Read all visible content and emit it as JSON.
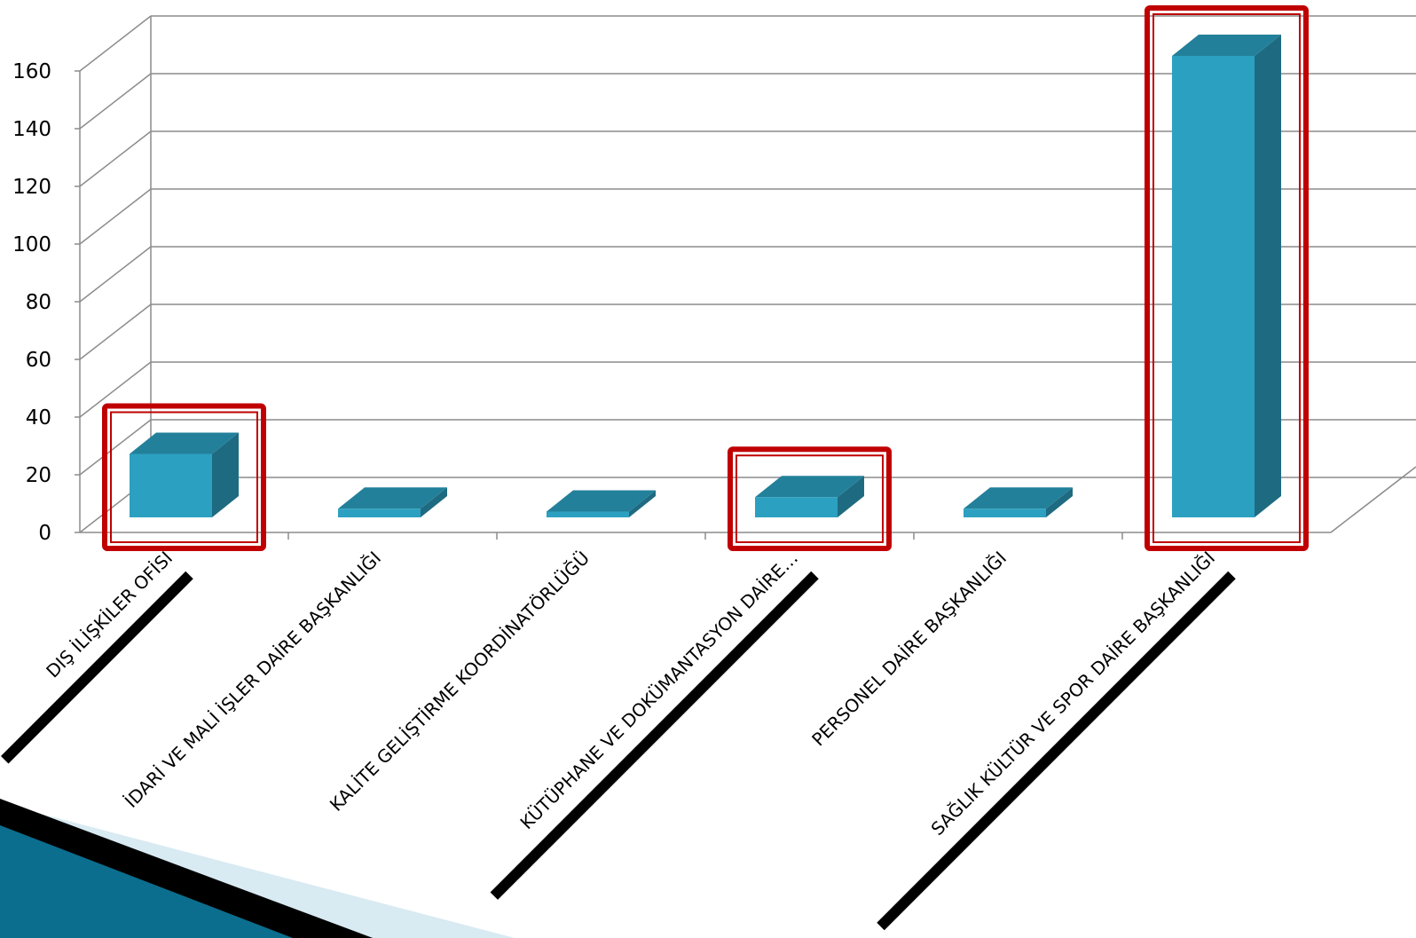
{
  "chart_data": {
    "type": "bar",
    "title": "",
    "xlabel": "",
    "ylabel": "",
    "ylim": [
      0,
      160
    ],
    "yticks": [
      0,
      20,
      40,
      60,
      80,
      100,
      120,
      140,
      160
    ],
    "categories": [
      "DIŞ İLİŞKİLER OFİSİ",
      "İDARİ VE MALİ İŞLER DAİRE BAŞKANLIĞI",
      "KALİTE GELİŞTİRME KOORDİNATÖRLÜĞÜ",
      "KÜTÜPHANE VE DOKÜMANTASYON DAİRE…",
      "PERSONEL DAİRE BAŞKANLIĞI",
      "SAĞLIK KÜLTÜR VE SPOR DAİRE BAŞKANLIĞI"
    ],
    "values": [
      22,
      3,
      2,
      7,
      3,
      160
    ],
    "highlighted": [
      "DIŞ İLİŞKİLER OFİSİ",
      "KÜTÜPHANE VE DOKÜMANTASYON DAİRE…",
      "SAĞLIK KÜLTÜR VE SPOR DAİRE BAŞKANLIĞI"
    ],
    "grid": true,
    "style": "3d-column",
    "colors": {
      "bar_front": "#2CA0C0",
      "bar_top": "#23809A",
      "bar_side": "#1E6B81",
      "gridline": "#8C8C8C",
      "highlight": "#C00000",
      "underline": "#000000",
      "decor_dark": "#0B6E8E",
      "decor_light": "#D8EAF2"
    }
  }
}
